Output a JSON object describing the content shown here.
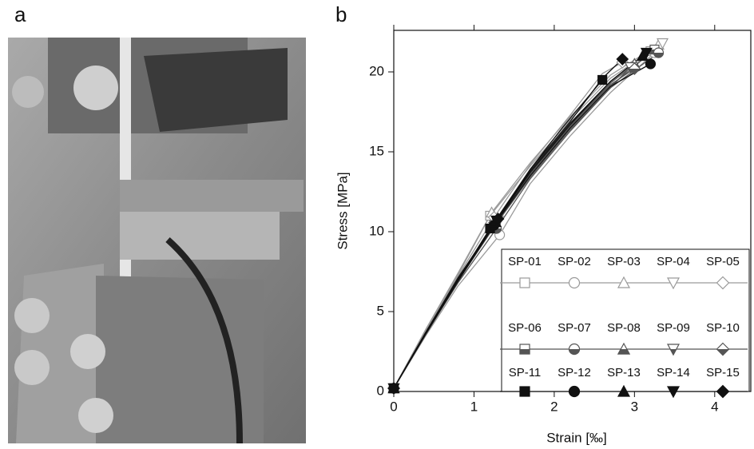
{
  "panels": {
    "a": "a",
    "b": "b"
  },
  "chart_data": {
    "type": "line",
    "x_label": "Strain [‰]",
    "y_label": "Stress [MPa]",
    "xlim": [
      0,
      4.45
    ],
    "ylim": [
      0,
      22.6
    ],
    "xticks": [
      0,
      1,
      2,
      3,
      4
    ],
    "yticks": [
      0,
      5,
      10,
      15,
      20
    ],
    "series": [
      {
        "name": "SP-01",
        "color": "#9a9a9a",
        "marker": "square",
        "fill": "open",
        "x": [
          0,
          0.4,
          0.8,
          1.2,
          1.7,
          2.2,
          2.7,
          3.2
        ],
        "values": [
          0.2,
          3.8,
          7.3,
          11.0,
          14.1,
          17.0,
          19.6,
          21.3
        ]
      },
      {
        "name": "SP-02",
        "color": "#9a9a9a",
        "marker": "circle",
        "fill": "open",
        "x": [
          0,
          0.4,
          0.8,
          1.32,
          1.7,
          2.2,
          2.7,
          3.25
        ],
        "values": [
          0.2,
          3.5,
          6.6,
          9.8,
          13.0,
          16.0,
          18.7,
          21.2
        ]
      },
      {
        "name": "SP-03",
        "color": "#9a9a9a",
        "marker": "triangle-up",
        "fill": "open",
        "x": [
          0,
          0.4,
          0.8,
          1.22,
          1.7,
          2.2,
          2.7,
          3.3
        ],
        "values": [
          0.2,
          3.9,
          7.4,
          11.2,
          14.3,
          17.2,
          19.8,
          21.7
        ]
      },
      {
        "name": "SP-04",
        "color": "#9a9a9a",
        "marker": "triangle-down",
        "fill": "open",
        "x": [
          0,
          0.4,
          0.8,
          1.3,
          1.7,
          2.2,
          2.7,
          3.35
        ],
        "values": [
          0.2,
          3.7,
          7.1,
          10.7,
          13.8,
          16.7,
          19.3,
          21.8
        ]
      },
      {
        "name": "SP-05",
        "color": "#9a9a9a",
        "marker": "diamond",
        "fill": "open",
        "x": [
          0,
          0.4,
          0.8,
          1.25,
          1.7,
          2.2,
          2.6,
          2.85
        ],
        "values": [
          0.2,
          3.8,
          7.2,
          10.9,
          14.2,
          17.3,
          19.9,
          20.6
        ]
      },
      {
        "name": "SP-06",
        "color": "#555555",
        "marker": "square",
        "fill": "half",
        "x": [
          0,
          0.4,
          0.8,
          1.25,
          1.7,
          2.2,
          2.7,
          3.25
        ],
        "values": [
          0.2,
          3.6,
          6.9,
          10.4,
          13.5,
          16.5,
          19.1,
          21.4
        ]
      },
      {
        "name": "SP-07",
        "color": "#555555",
        "marker": "circle",
        "fill": "half",
        "x": [
          0,
          0.4,
          0.8,
          1.28,
          1.7,
          2.2,
          2.7,
          3.3
        ],
        "values": [
          0.2,
          3.6,
          6.8,
          10.2,
          13.3,
          16.3,
          19.0,
          21.2
        ]
      },
      {
        "name": "SP-08",
        "color": "#555555",
        "marker": "triangle-up",
        "fill": "half",
        "x": [
          0,
          0.4,
          0.8,
          1.27,
          1.7,
          2.2,
          2.7,
          3.0
        ],
        "values": [
          0.2,
          3.7,
          7.0,
          10.6,
          13.7,
          16.6,
          19.3,
          20.5
        ]
      },
      {
        "name": "SP-09",
        "color": "#555555",
        "marker": "triangle-down",
        "fill": "half",
        "x": [
          0,
          0.4,
          0.8,
          1.25,
          1.7,
          2.2,
          2.7,
          2.95
        ],
        "values": [
          0.2,
          3.6,
          6.9,
          10.3,
          13.4,
          16.4,
          19.0,
          20.3
        ]
      },
      {
        "name": "SP-10",
        "color": "#555555",
        "marker": "diamond",
        "fill": "half",
        "x": [
          0,
          0.4,
          0.8,
          1.26,
          1.7,
          2.2,
          2.7,
          3.0
        ],
        "values": [
          0.2,
          3.7,
          7.0,
          10.5,
          13.6,
          16.6,
          19.2,
          20.2
        ]
      },
      {
        "name": "SP-11",
        "color": "#111111",
        "marker": "square",
        "fill": "filled",
        "x": [
          0,
          0.4,
          0.8,
          1.2,
          1.7,
          2.1,
          2.4,
          2.6
        ],
        "values": [
          0.2,
          3.7,
          7.0,
          10.2,
          13.9,
          16.5,
          18.3,
          19.5
        ]
      },
      {
        "name": "SP-12",
        "color": "#111111",
        "marker": "circle",
        "fill": "filled",
        "x": [
          0,
          0.4,
          0.8,
          1.25,
          1.7,
          2.2,
          2.7,
          3.2
        ],
        "values": [
          0.2,
          3.6,
          6.9,
          10.4,
          13.5,
          16.5,
          19.1,
          20.5
        ]
      },
      {
        "name": "SP-13",
        "color": "#111111",
        "marker": "triangle-up",
        "fill": "filled",
        "x": [
          0,
          0.4,
          0.8,
          1.27,
          1.7,
          2.2,
          2.7,
          3.1
        ],
        "values": [
          0.2,
          3.7,
          7.0,
          10.6,
          13.7,
          16.7,
          19.4,
          21.0
        ]
      },
      {
        "name": "SP-14",
        "color": "#111111",
        "marker": "triangle-down",
        "fill": "filled",
        "x": [
          0,
          0.4,
          0.8,
          1.28,
          1.7,
          2.2,
          2.7,
          3.15
        ],
        "values": [
          0.2,
          3.7,
          7.1,
          10.7,
          13.8,
          16.8,
          19.4,
          21.2
        ]
      },
      {
        "name": "SP-15",
        "color": "#111111",
        "marker": "diamond",
        "fill": "filled",
        "x": [
          0,
          0.4,
          0.8,
          1.3,
          1.7,
          2.2,
          2.6,
          2.85
        ],
        "values": [
          0.2,
          3.7,
          7.1,
          10.8,
          13.9,
          16.9,
          19.6,
          20.8
        ]
      }
    ]
  }
}
